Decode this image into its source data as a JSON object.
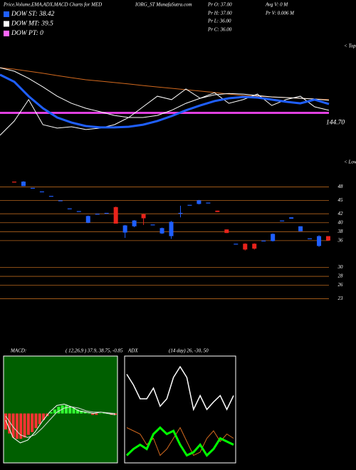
{
  "chart_data": [
    {
      "type": "line",
      "title": "Price,Volume,EMA,ADX,MACD Charts for MED",
      "subtitle": "IORG_ST MunafaSutra.com",
      "annotations": [
        "Pr  O: 37.00",
        "Pr  H: 37.00",
        "Pr  L: 36.00",
        "Pr  C: 36.00",
        "Avg V: 0  M",
        "Pr  V: 0.006  M"
      ],
      "legend": [
        {
          "label": "DOW ST: 38.42",
          "color": "#1f5fff"
        },
        {
          "label": "DOW MT: 39.5",
          "color": "#ffffff"
        },
        {
          "label": "DOW PT: 0",
          "color": "#ff66ff"
        }
      ],
      "tops_label": "< Tops",
      "ylim": [
        135,
        175
      ],
      "level": {
        "value": 144.7,
        "label": "144.70",
        "color": "#e040e0"
      },
      "series": [
        {
          "color": "#d2691e",
          "width": 1,
          "values": [
            164.2,
            163.6,
            162.7,
            161.8,
            160.8,
            159.9,
            159.0,
            158.4,
            157.8,
            157.2,
            156.5,
            155.9,
            155.3,
            154.7,
            154.1,
            153.5,
            152.8,
            152.2,
            151.9,
            151.6,
            151.3,
            151.0,
            150.7,
            150.4
          ]
        },
        {
          "color": "#ffffff",
          "width": 1,
          "values": [
            164.2,
            162.7,
            159.6,
            155.9,
            151.9,
            148.8,
            146.7,
            145.2,
            143.6,
            142.7,
            142.7,
            143.6,
            145.8,
            148.8,
            151.0,
            152.5,
            153.1,
            152.8,
            152.2,
            151.6,
            151.3,
            151.0,
            150.7,
            150.1
          ]
        },
        {
          "color": "#ffffff",
          "width": 1,
          "values": [
            135.0,
            141.2,
            150.4,
            139.6,
            138.1,
            138.7,
            137.5,
            138.1,
            139.6,
            142.7,
            147.3,
            151.9,
            150.4,
            155.0,
            151.0,
            153.4,
            148.8,
            150.4,
            152.8,
            147.9,
            150.4,
            151.9,
            147.3,
            145.8
          ]
        },
        {
          "color": "#1f5fff",
          "width": 3,
          "values": [
            161.2,
            158.1,
            151.9,
            146.7,
            142.7,
            140.5,
            139.0,
            138.4,
            138.4,
            138.7,
            139.6,
            141.2,
            143.3,
            145.8,
            147.9,
            149.8,
            151.0,
            151.6,
            151.3,
            150.4,
            149.5,
            148.8,
            150.4,
            148.5
          ]
        }
      ]
    },
    {
      "type": "candlestick",
      "lows_label": "< Lows",
      "ylim": [
        21,
        50
      ],
      "yticks": [
        48,
        45,
        42,
        40,
        38,
        36,
        30,
        28,
        26,
        23
      ],
      "grid": true,
      "grid_color": "#b5651d",
      "up_color": "#1f5fff",
      "down_color": "#e8231b",
      "open": [
        49.2,
        48.2,
        47.8,
        47.0,
        46.0,
        45.0,
        43.2,
        42.6,
        40.0,
        42.0,
        42.2,
        43.5,
        37.8,
        39.2,
        41.9,
        39.6,
        37.6,
        37.0,
        42.2,
        44.0,
        44.2,
        44.5,
        42.7,
        38.5,
        35.3,
        35.3,
        35.3,
        36.0,
        35.9,
        40.5,
        40.9,
        38.1,
        36.5,
        34.8,
        37.0
      ],
      "high": [
        49.2,
        49.3,
        47.8,
        47.0,
        46.0,
        45.0,
        43.2,
        42.6,
        41.6,
        42.0,
        42.2,
        43.6,
        39.5,
        40.6,
        42.0,
        39.6,
        38.9,
        40.4,
        43.8,
        44.0,
        45.1,
        44.5,
        42.7,
        38.5,
        35.3,
        35.4,
        35.4,
        36.0,
        37.6,
        40.5,
        41.2,
        39.2,
        36.5,
        37.2,
        37.0
      ],
      "low": [
        49.0,
        48.2,
        47.8,
        47.0,
        46.0,
        45.0,
        43.2,
        42.6,
        39.9,
        42.0,
        42.2,
        39.8,
        36.6,
        39.0,
        39.5,
        39.6,
        37.5,
        36.4,
        41.2,
        44.0,
        44.1,
        44.5,
        42.4,
        37.7,
        35.3,
        33.8,
        34.0,
        36.0,
        35.8,
        40.5,
        40.9,
        38.1,
        36.5,
        34.6,
        36.0
      ],
      "close": [
        49.0,
        49.2,
        47.8,
        47.0,
        46.0,
        45.0,
        43.2,
        42.6,
        41.5,
        42.0,
        42.2,
        39.8,
        39.4,
        40.5,
        41.0,
        39.6,
        38.8,
        40.2,
        42.2,
        44.0,
        45.0,
        44.5,
        42.4,
        37.7,
        35.3,
        34.0,
        34.2,
        36.0,
        37.5,
        40.5,
        41.2,
        39.2,
        36.5,
        37.0,
        36.0
      ]
    },
    {
      "type": "macd",
      "title": "MACD:",
      "subtitle": "( 12,26,9 ) 37.9, 38.75, -0.85",
      "background": "#005f00",
      "ylim": [
        -3.7,
        4.3
      ],
      "pos_color": "#33ff33",
      "neg_color": "#ff3333",
      "histogram": [
        -1.2,
        -1.5,
        -1.8,
        -1.9,
        -1.9,
        -1.8,
        -1.6,
        -1.4,
        -1.1,
        -0.8,
        -0.5,
        -0.2,
        0.1,
        0.3,
        0.5,
        0.6,
        0.6,
        0.5,
        0.4,
        0.3,
        0.2,
        0.1,
        0,
        -0.1,
        -0.1,
        0,
        0.1,
        0,
        -0.1,
        -0.1
      ],
      "series": [
        {
          "color": "#ffffff",
          "width": 1,
          "values": [
            -0.5,
            -1.8,
            -2.2,
            -2.0,
            -1.4,
            -0.6,
            0.1,
            0.6,
            0.7,
            0.5,
            0.2,
            0.1,
            0.0,
            0.1,
            0.0,
            -0.1
          ]
        },
        {
          "color": "#dddddd",
          "width": 1,
          "values": [
            -0.2,
            -1.0,
            -1.6,
            -1.8,
            -1.6,
            -1.1,
            -0.5,
            0.1,
            0.4,
            0.5,
            0.4,
            0.2,
            0.1,
            0.1,
            0.05,
            0.0
          ]
        }
      ]
    },
    {
      "type": "adx",
      "title": "ADX",
      "subtitle": "(14 day) 26, -30, 50",
      "background": "#000000",
      "ylim": [
        0,
        100
      ],
      "series": [
        {
          "color": "#ffffff",
          "width": 1.5,
          "values": [
            83,
            73,
            60,
            60,
            70,
            53,
            60,
            80,
            90,
            80,
            50,
            63,
            50,
            57,
            63,
            50,
            63
          ]
        },
        {
          "color": "#d2691e",
          "width": 1,
          "values": [
            33,
            30,
            27,
            17,
            23,
            7,
            13,
            23,
            33,
            20,
            7,
            10,
            23,
            30,
            20,
            27,
            23
          ]
        },
        {
          "color": "#00ff00",
          "width": 3,
          "values": [
            7,
            13,
            17,
            13,
            27,
            33,
            27,
            30,
            17,
            7,
            10,
            17,
            7,
            13,
            23,
            20,
            17
          ]
        }
      ]
    }
  ]
}
